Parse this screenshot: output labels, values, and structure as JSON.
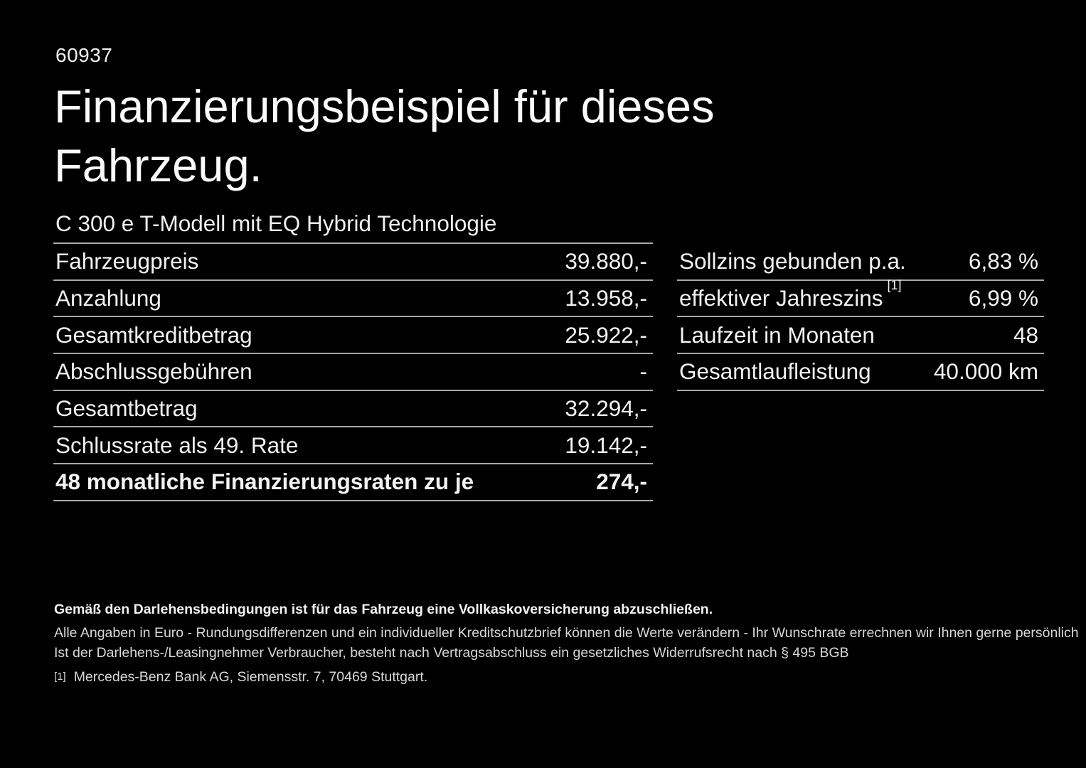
{
  "page": {
    "background_color": "#000000",
    "text_color": "#f2f2f2",
    "divider_color": "#a8a8a8"
  },
  "header": {
    "ref_number": "60937",
    "title_lines": [
      "Finanzierungsbeispiel für dieses",
      "Fahrzeug."
    ],
    "vehicle_model": "C 300 e T-Modell mit EQ Hybrid Technologie"
  },
  "finance_table": {
    "rows": [
      {
        "label": "Fahrzeugpreis",
        "value": "39.880,-"
      },
      {
        "label": "Anzahlung",
        "value": "13.958,-"
      },
      {
        "label": "Gesamtkreditbetrag",
        "value": "25.922,-"
      },
      {
        "label": "Abschlussgebühren",
        "value": "-"
      },
      {
        "label": "Gesamtbetrag",
        "value": "32.294,-"
      },
      {
        "label": "Schlussrate als 49. Rate",
        "value": "19.142,-"
      },
      {
        "label": "48 monatliche Finanzierungsraten zu je",
        "value": "274,-",
        "bold": true
      }
    ]
  },
  "conditions_table": {
    "rows": [
      {
        "label": "Sollzins gebunden p.a.",
        "value": "6,83 %"
      },
      {
        "label": "effektiver Jahreszins",
        "footnote_marker": "[1]",
        "value": "6,99 %"
      },
      {
        "label": "Laufzeit in Monaten",
        "value": "48"
      },
      {
        "label": "Gesamtlaufleistung",
        "value": "40.000 km"
      }
    ]
  },
  "fine_print": {
    "insurance_note": "Gemäß den Darlehensbedingungen ist für das Fahrzeug eine Vollkaskoversicherung abzuschließen.",
    "disclaimer_line1": "Alle Angaben in Euro - Rundungsdifferenzen und ein individueller Kreditschutzbrief können die Werte verändern - Ihr Wunschrate errechnen wir Ihnen gerne persönlich",
    "disclaimer_line2": "Ist der Darlehens-/Leasingnehmer Verbraucher, besteht nach Vertragsabschluss ein gesetzliches Widerrufsrecht nach § 495 BGB",
    "footnote_marker": "[1]",
    "footnote_text": "Mercedes-Benz Bank AG, Siemensstr. 7, 70469 Stuttgart."
  }
}
